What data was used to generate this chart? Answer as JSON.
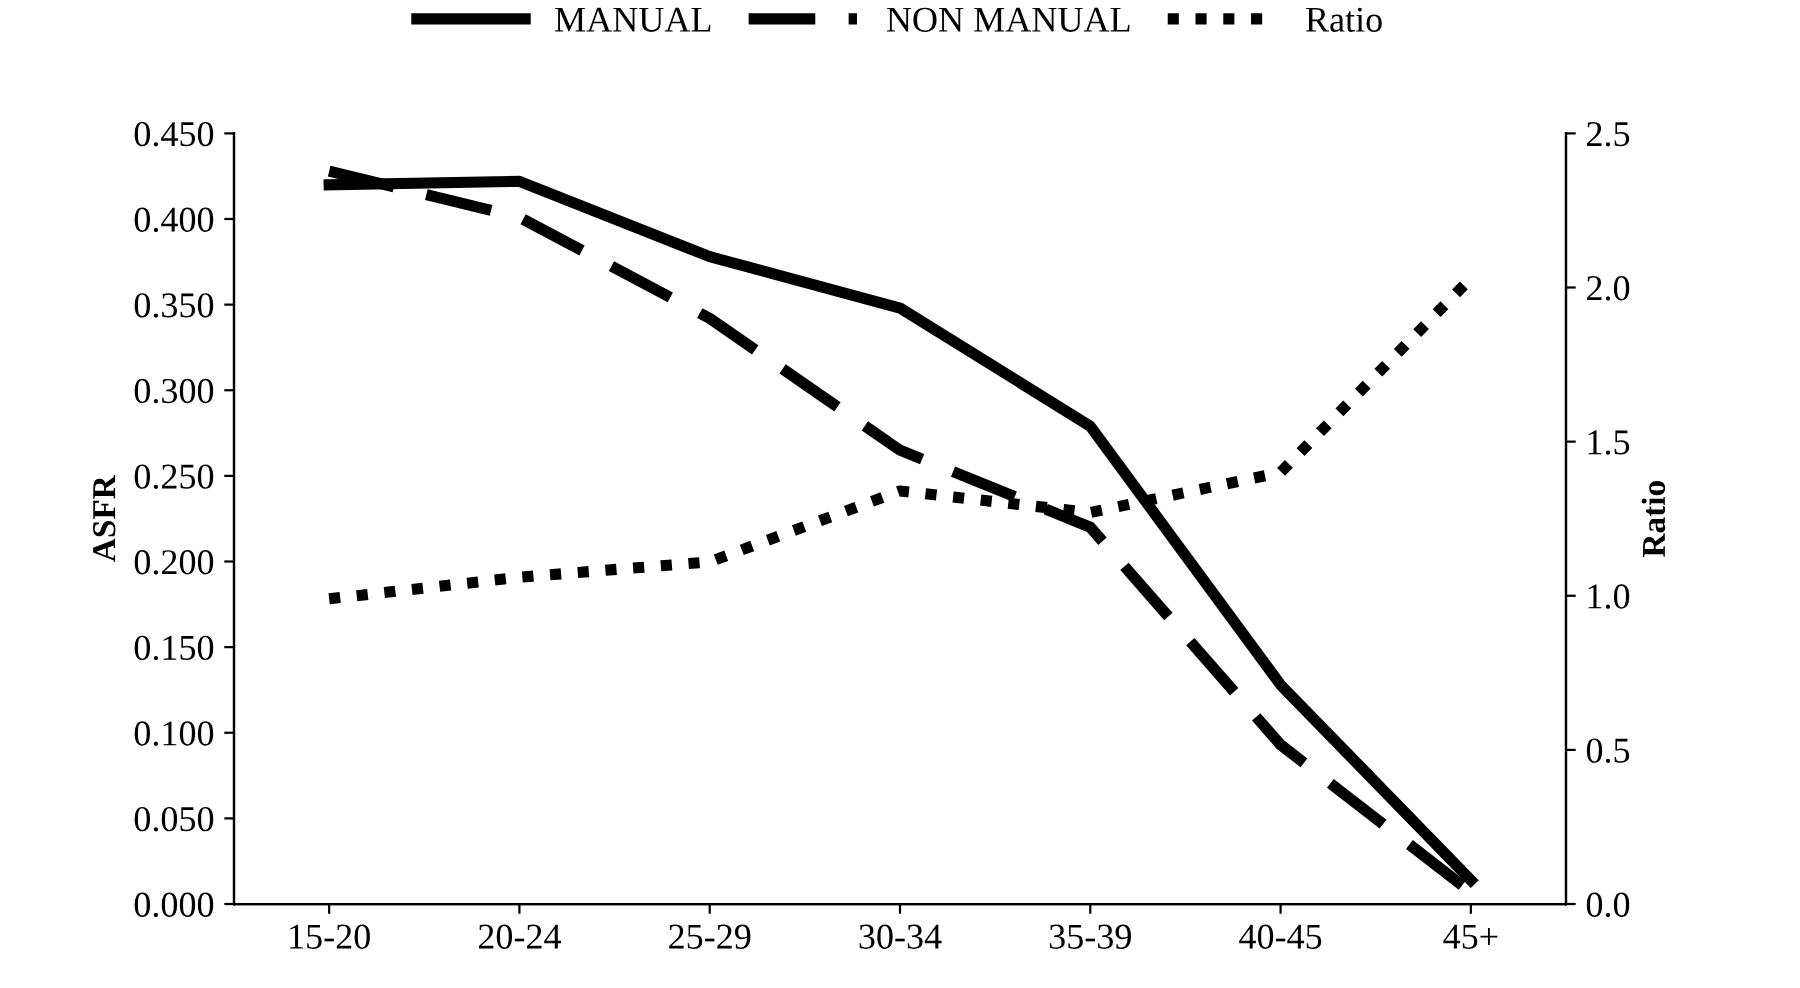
{
  "chart_data": {
    "type": "line",
    "ylabel": "ASFR",
    "y2label": "Ratio",
    "categories": [
      "15-20",
      "20-24",
      "25-29",
      "30-34",
      "35-39",
      "40-45",
      "45+"
    ],
    "series": [
      {
        "name": "MANUAL",
        "color": "#000000",
        "line_style": "solid",
        "values": [
          0.42,
          0.422,
          0.378,
          0.348,
          0.279,
          0.128,
          0.014
        ]
      },
      {
        "name": "NON MANUAL",
        "color": "#000000",
        "line_style": "dashed",
        "values": [
          0.428,
          0.401,
          0.342,
          0.265,
          0.22,
          0.093,
          0.007
        ]
      },
      {
        "name": "Ratio",
        "color": "#000000",
        "line_style": "dotted",
        "axis": "y2",
        "values": [
          0.99,
          1.06,
          1.11,
          1.34,
          1.27,
          1.4,
          2.03
        ]
      }
    ],
    "ylim": [
      0,
      0.45
    ],
    "yticks": [
      {
        "value": 0,
        "label": "0.000"
      },
      {
        "value": 0.05,
        "label": "0.050"
      },
      {
        "value": 0.1,
        "label": "0.100"
      },
      {
        "value": 0.15,
        "label": "0.150"
      },
      {
        "value": 0.2,
        "label": "0.200"
      },
      {
        "value": 0.25,
        "label": "0.250"
      },
      {
        "value": 0.3,
        "label": "0.300"
      },
      {
        "value": 0.35,
        "label": "0.350"
      },
      {
        "value": 0.4,
        "label": "0.400"
      },
      {
        "value": 0.45,
        "label": "0.450"
      }
    ],
    "y2lim": [
      0,
      2.5
    ],
    "y2ticks": [
      {
        "value": 0,
        "label": "0.0"
      },
      {
        "value": 0.5,
        "label": "0.5"
      },
      {
        "value": 1,
        "label": "1.0"
      },
      {
        "value": 1.5,
        "label": "1.5"
      },
      {
        "value": 2,
        "label": "2.0"
      },
      {
        "value": 2.5,
        "label": "2.5"
      }
    ],
    "grid": false,
    "legend": "top",
    "marker": "none"
  }
}
